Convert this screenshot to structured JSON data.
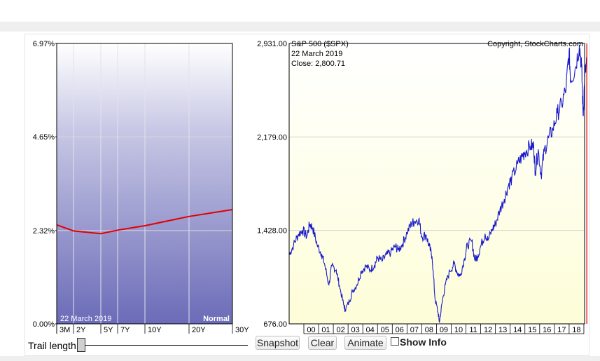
{
  "chart_data": [
    {
      "type": "line",
      "x": [
        "3M",
        "2Y",
        "5Y",
        "7Y",
        "10Y",
        "20Y",
        "30Y"
      ],
      "x_positions_years": [
        0.25,
        2,
        5,
        7,
        10,
        20,
        30
      ],
      "series": [
        {
          "values": [
            2.46,
            2.31,
            2.24,
            2.33,
            2.44,
            2.67,
            2.84
          ],
          "color": "#e00000"
        }
      ],
      "yticks": [
        "6.97%",
        "4.65%",
        "2.32%",
        "0.00%"
      ],
      "ylim": [
        0,
        6.97
      ],
      "date_label": "22  March 2019",
      "mode_label": "Normal",
      "grid": true
    },
    {
      "type": "line",
      "title": "S&P 500 ($SPX)",
      "copyright": "Copyright, StockCharts.com",
      "info_date": "22  March 2019",
      "info_close": "Close: 2,800.71",
      "x": [
        "00",
        "01",
        "02",
        "03",
        "04",
        "05",
        "06",
        "07",
        "08",
        "09",
        "10",
        "11",
        "12",
        "13",
        "14",
        "15",
        "16",
        "17",
        "18"
      ],
      "yticks": [
        "2,931.00",
        "2,179.00",
        "1,428.00",
        "676.00"
      ],
      "ylim": [
        676,
        2931
      ],
      "series": [
        {
          "color": "#1a1acc",
          "points": [
            [
              1999.0,
              1230
            ],
            [
              1999.3,
              1310
            ],
            [
              1999.6,
              1390
            ],
            [
              1999.9,
              1430
            ],
            [
              2000.2,
              1380
            ],
            [
              2000.4,
              1480
            ],
            [
              2000.6,
              1450
            ],
            [
              2000.9,
              1310
            ],
            [
              2001.2,
              1240
            ],
            [
              2001.4,
              1160
            ],
            [
              2001.7,
              990
            ],
            [
              2001.9,
              1140
            ],
            [
              2002.2,
              1110
            ],
            [
              2002.4,
              990
            ],
            [
              2002.7,
              830
            ],
            [
              2002.8,
              790
            ],
            [
              2003.1,
              860
            ],
            [
              2003.3,
              940
            ],
            [
              2003.6,
              990
            ],
            [
              2003.9,
              1100
            ],
            [
              2004.2,
              1140
            ],
            [
              2004.5,
              1110
            ],
            [
              2004.8,
              1150
            ],
            [
              2005.0,
              1210
            ],
            [
              2005.3,
              1180
            ],
            [
              2005.6,
              1230
            ],
            [
              2005.9,
              1250
            ],
            [
              2006.2,
              1300
            ],
            [
              2006.4,
              1270
            ],
            [
              2006.7,
              1320
            ],
            [
              2007.0,
              1410
            ],
            [
              2007.3,
              1480
            ],
            [
              2007.5,
              1500
            ],
            [
              2007.8,
              1520
            ],
            [
              2008.0,
              1380
            ],
            [
              2008.3,
              1390
            ],
            [
              2008.5,
              1300
            ],
            [
              2008.7,
              1220
            ],
            [
              2008.9,
              880
            ],
            [
              2009.1,
              770
            ],
            [
              2009.2,
              690
            ],
            [
              2009.4,
              860
            ],
            [
              2009.6,
              990
            ],
            [
              2009.9,
              1100
            ],
            [
              2010.2,
              1160
            ],
            [
              2010.4,
              1090
            ],
            [
              2010.6,
              1060
            ],
            [
              2010.9,
              1200
            ],
            [
              2011.1,
              1310
            ],
            [
              2011.4,
              1340
            ],
            [
              2011.6,
              1190
            ],
            [
              2011.8,
              1220
            ],
            [
              2012.0,
              1300
            ],
            [
              2012.3,
              1400
            ],
            [
              2012.5,
              1350
            ],
            [
              2012.8,
              1440
            ],
            [
              2013.0,
              1480
            ],
            [
              2013.3,
              1590
            ],
            [
              2013.6,
              1680
            ],
            [
              2013.9,
              1800
            ],
            [
              2014.1,
              1840
            ],
            [
              2014.5,
              1960
            ],
            [
              2014.8,
              2020
            ],
            [
              2015.0,
              2060
            ],
            [
              2015.4,
              2110
            ],
            [
              2015.6,
              2100
            ],
            [
              2015.7,
              1900
            ],
            [
              2015.9,
              2080
            ],
            [
              2016.1,
              1870
            ],
            [
              2016.3,
              2060
            ],
            [
              2016.6,
              2170
            ],
            [
              2016.9,
              2240
            ],
            [
              2017.2,
              2370
            ],
            [
              2017.5,
              2440
            ],
            [
              2017.8,
              2580
            ],
            [
              2018.0,
              2870
            ],
            [
              2018.1,
              2640
            ],
            [
              2018.4,
              2720
            ],
            [
              2018.7,
              2920
            ],
            [
              2018.85,
              2740
            ],
            [
              2018.95,
              2350
            ],
            [
              2019.05,
              2640
            ],
            [
              2019.2,
              2800.71
            ]
          ]
        }
      ],
      "grid": true
    }
  ],
  "controls": {
    "trail_length_label": "Trail length:",
    "snapshot": "Snapshot",
    "clear": "Clear",
    "animate": "Animate",
    "show_info": "Show Info"
  },
  "colors": {
    "yield_curve": "#e00000",
    "spx_line": "#1a1acc",
    "current_marker": "#e00000"
  }
}
